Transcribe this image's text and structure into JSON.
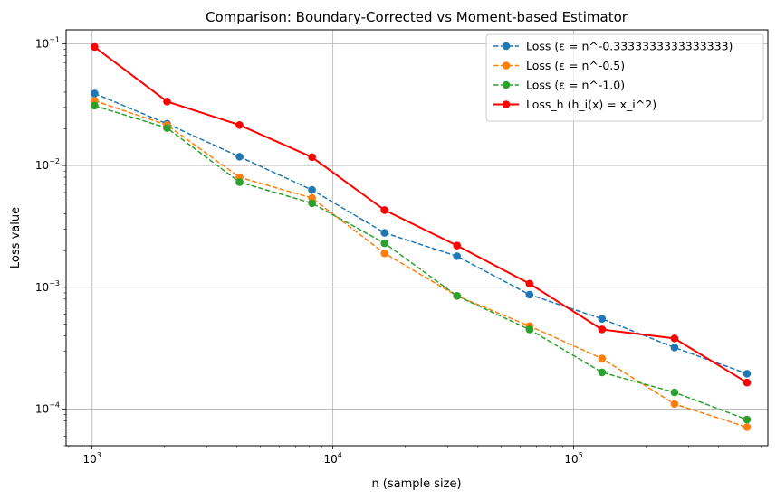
{
  "chart_data": {
    "type": "line",
    "title": "Comparison: Boundary-Corrected vs Moment-based Estimator",
    "xlabel": "n (sample size)",
    "ylabel": "Loss value",
    "xscale": "log",
    "yscale": "log",
    "xlim": [
      780,
      640000
    ],
    "ylim": [
      5e-05,
      0.13
    ],
    "grid": true,
    "legend_position": "top-right",
    "x_tick_labels": [
      {
        "base": "10",
        "exp": "3",
        "value": 1000
      },
      {
        "base": "10",
        "exp": "4",
        "value": 10000
      },
      {
        "base": "10",
        "exp": "5",
        "value": 100000
      }
    ],
    "y_tick_labels": [
      {
        "base": "10",
        "exp": "−1",
        "value": 0.1
      },
      {
        "base": "10",
        "exp": "−2",
        "value": 0.01
      },
      {
        "base": "10",
        "exp": "−3",
        "value": 0.001
      },
      {
        "base": "10",
        "exp": "−4",
        "value": 0.0001
      }
    ],
    "x": [
      1024,
      2048,
      4096,
      8192,
      16384,
      32768,
      65536,
      131072,
      262144,
      524288
    ],
    "series": [
      {
        "name": "Loss (ε = n^-0.3333333333333333)",
        "color": "#1f77b4",
        "style": "dashed",
        "values": [
          0.039,
          0.022,
          0.0118,
          0.0063,
          0.0028,
          0.0018,
          0.00087,
          0.00055,
          0.00032,
          0.000195
        ]
      },
      {
        "name": "Loss (ε = n^-0.5)",
        "color": "#ff7f0e",
        "style": "dashed",
        "values": [
          0.034,
          0.0215,
          0.008,
          0.0054,
          0.0019,
          0.00085,
          0.00048,
          0.00026,
          0.00011,
          7.1e-05
        ]
      },
      {
        "name": "Loss (ε = n^-1.0)",
        "color": "#2ca02c",
        "style": "dashed",
        "values": [
          0.031,
          0.0203,
          0.0073,
          0.0049,
          0.0023,
          0.00085,
          0.00045,
          0.0002,
          0.000137,
          8.2e-05
        ]
      },
      {
        "name": "Loss_h (h_i(x) = x_i^2)",
        "color": "#ff0000",
        "style": "solid",
        "values": [
          0.094,
          0.0335,
          0.0215,
          0.0117,
          0.0043,
          0.0022,
          0.00107,
          0.00045,
          0.00038,
          0.000165
        ]
      }
    ]
  }
}
